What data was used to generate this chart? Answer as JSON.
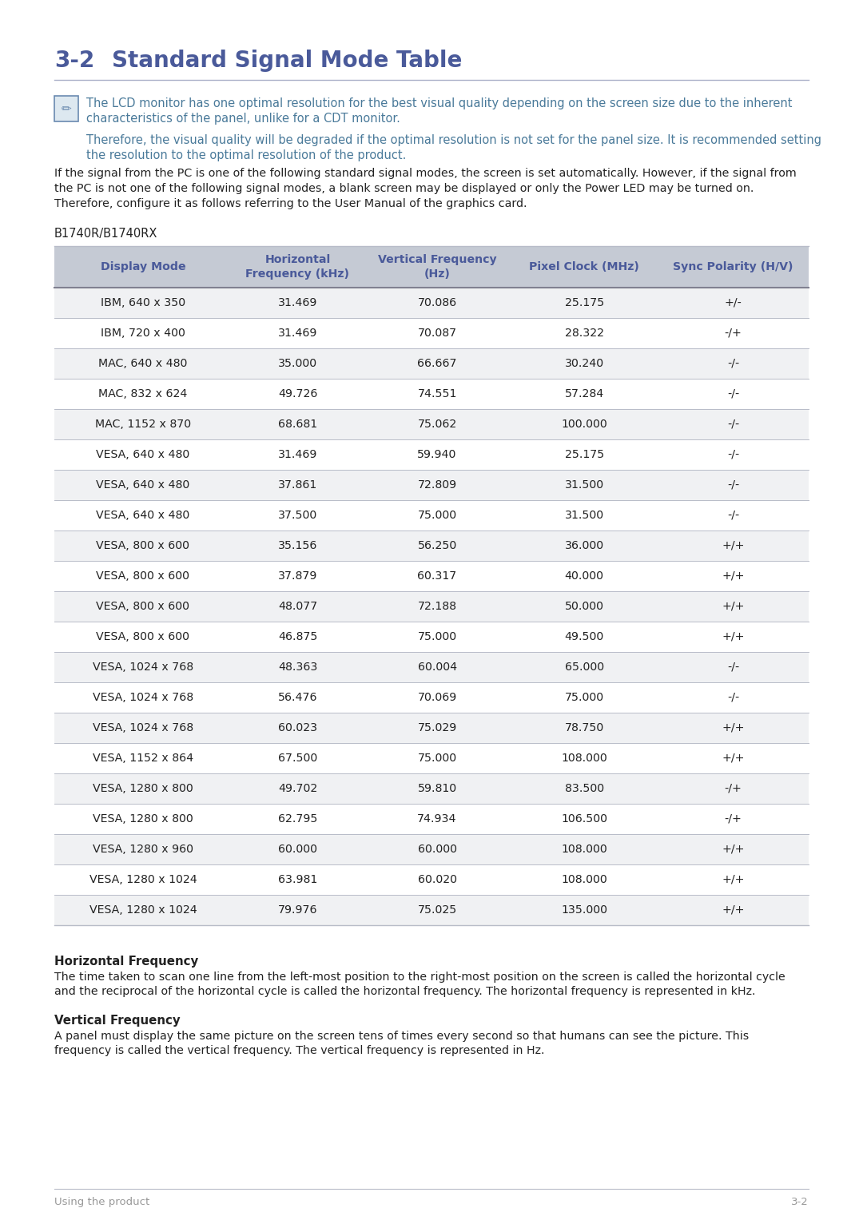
{
  "title_num": "3-2",
  "title_text": "Standard Signal Mode Table",
  "title_color": "#4a5a9a",
  "title_fontsize": 20,
  "hr_color": "#aab0c8",
  "note_icon_color": "#6a8ab0",
  "note_text_color": "#4a7a9a",
  "note_lines": [
    "The LCD monitor has one optimal resolution for the best visual quality depending on the screen size due to the inherent",
    "characteristics of the panel, unlike for a CDT monitor.",
    "Therefore, the visual quality will be degraded if the optimal resolution is not set for the panel size. It is recommended setting",
    "the resolution to the optimal resolution of the product."
  ],
  "body_text_color": "#222222",
  "body_text": [
    "If the signal from the PC is one of the following standard signal modes, the screen is set automatically. However, if the signal from",
    "the PC is not one of the following signal modes, a blank screen may be displayed or only the Power LED may be turned on.",
    "Therefore, configure it as follows referring to the User Manual of the graphics card."
  ],
  "model_label": "B1740R/B1740RX",
  "table_header_bg": "#c5cad4",
  "table_header_text_color": "#4a5a9a",
  "table_row_bg_odd": "#f0f1f3",
  "table_row_bg_even": "#ffffff",
  "table_border_color": "#b8bcc8",
  "table_headers": [
    "Display Mode",
    "Horizontal\nFrequency (kHz)",
    "Vertical Frequency\n(Hz)",
    "Pixel Clock (MHz)",
    "Sync Polarity (H/V)"
  ],
  "table_data": [
    [
      "IBM, 640 x 350",
      "31.469",
      "70.086",
      "25.175",
      "+/-"
    ],
    [
      "IBM, 720 x 400",
      "31.469",
      "70.087",
      "28.322",
      "-/+"
    ],
    [
      "MAC, 640 x 480",
      "35.000",
      "66.667",
      "30.240",
      "-/-"
    ],
    [
      "MAC, 832 x 624",
      "49.726",
      "74.551",
      "57.284",
      "-/-"
    ],
    [
      "MAC, 1152 x 870",
      "68.681",
      "75.062",
      "100.000",
      "-/-"
    ],
    [
      "VESA, 640 x 480",
      "31.469",
      "59.940",
      "25.175",
      "-/-"
    ],
    [
      "VESA, 640 x 480",
      "37.861",
      "72.809",
      "31.500",
      "-/-"
    ],
    [
      "VESA, 640 x 480",
      "37.500",
      "75.000",
      "31.500",
      "-/-"
    ],
    [
      "VESA, 800 x 600",
      "35.156",
      "56.250",
      "36.000",
      "+/+"
    ],
    [
      "VESA, 800 x 600",
      "37.879",
      "60.317",
      "40.000",
      "+/+"
    ],
    [
      "VESA, 800 x 600",
      "48.077",
      "72.188",
      "50.000",
      "+/+"
    ],
    [
      "VESA, 800 x 600",
      "46.875",
      "75.000",
      "49.500",
      "+/+"
    ],
    [
      "VESA, 1024 x 768",
      "48.363",
      "60.004",
      "65.000",
      "-/-"
    ],
    [
      "VESA, 1024 x 768",
      "56.476",
      "70.069",
      "75.000",
      "-/-"
    ],
    [
      "VESA, 1024 x 768",
      "60.023",
      "75.029",
      "78.750",
      "+/+"
    ],
    [
      "VESA, 1152 x 864",
      "67.500",
      "75.000",
      "108.000",
      "+/+"
    ],
    [
      "VESA, 1280 x 800",
      "49.702",
      "59.810",
      "83.500",
      "-/+"
    ],
    [
      "VESA, 1280 x 800",
      "62.795",
      "74.934",
      "106.500",
      "-/+"
    ],
    [
      "VESA, 1280 x 960",
      "60.000",
      "60.000",
      "108.000",
      "+/+"
    ],
    [
      "VESA, 1280 x 1024",
      "63.981",
      "60.020",
      "108.000",
      "+/+"
    ],
    [
      "VESA, 1280 x 1024",
      "79.976",
      "75.025",
      "135.000",
      "+/+"
    ]
  ],
  "section_hfreq_title": "Horizontal Frequency",
  "section_hfreq_body": "The time taken to scan one line from the left-most position to the right-most position on the screen is called the horizontal cycle\nand the reciprocal of the horizontal cycle is called the horizontal frequency. The horizontal frequency is represented in kHz.",
  "section_vfreq_title": "Vertical Frequency",
  "section_vfreq_body": "A panel must display the same picture on the screen tens of times every second so that humans can see the picture. This\nfrequency is called the vertical frequency. The vertical frequency is represented in Hz.",
  "footer_left": "Using the product",
  "footer_right": "3-2",
  "footer_color": "#999999",
  "background_color": "#ffffff"
}
